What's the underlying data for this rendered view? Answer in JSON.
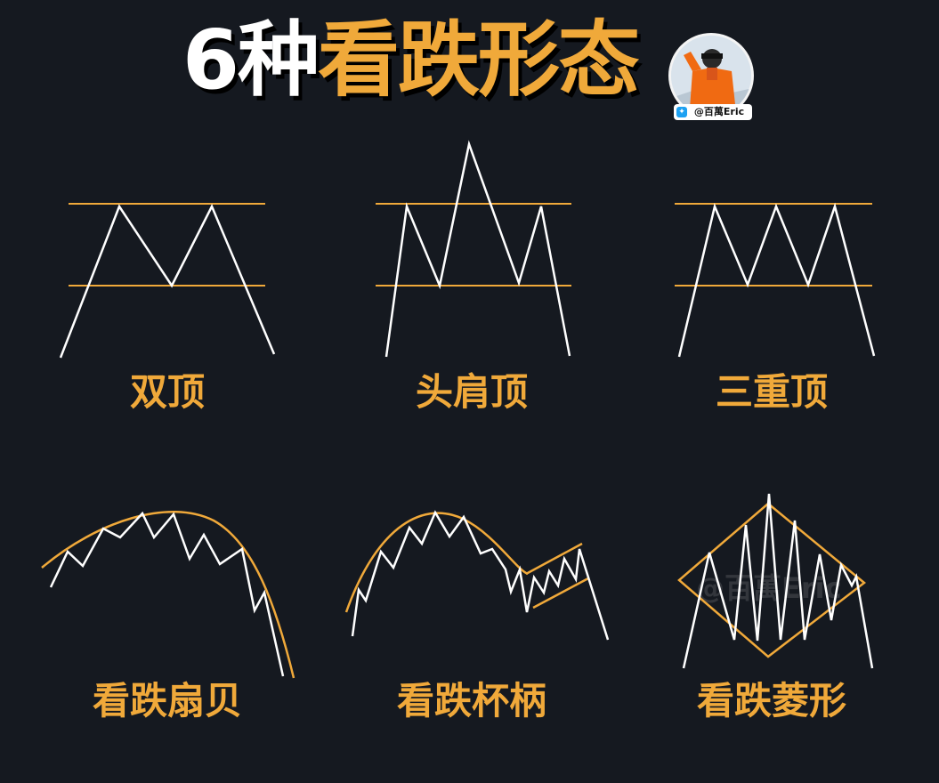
{
  "title": {
    "number": "6种",
    "highlight": "看跌形态"
  },
  "author": {
    "handle": "@百萬Eric",
    "avatar_icon": "avatar-photo-icon",
    "badge_icon": "bird-icon"
  },
  "watermark": "@百萬Eric",
  "colors": {
    "background": "#151920",
    "accent": "#f0a93a",
    "line": "#ffffff"
  },
  "patterns": [
    {
      "label": "双顶"
    },
    {
      "label": "头肩顶"
    },
    {
      "label": "三重顶"
    },
    {
      "label": "看跌扇贝"
    },
    {
      "label": "看跌杯柄"
    },
    {
      "label": "看跌菱形"
    }
  ]
}
